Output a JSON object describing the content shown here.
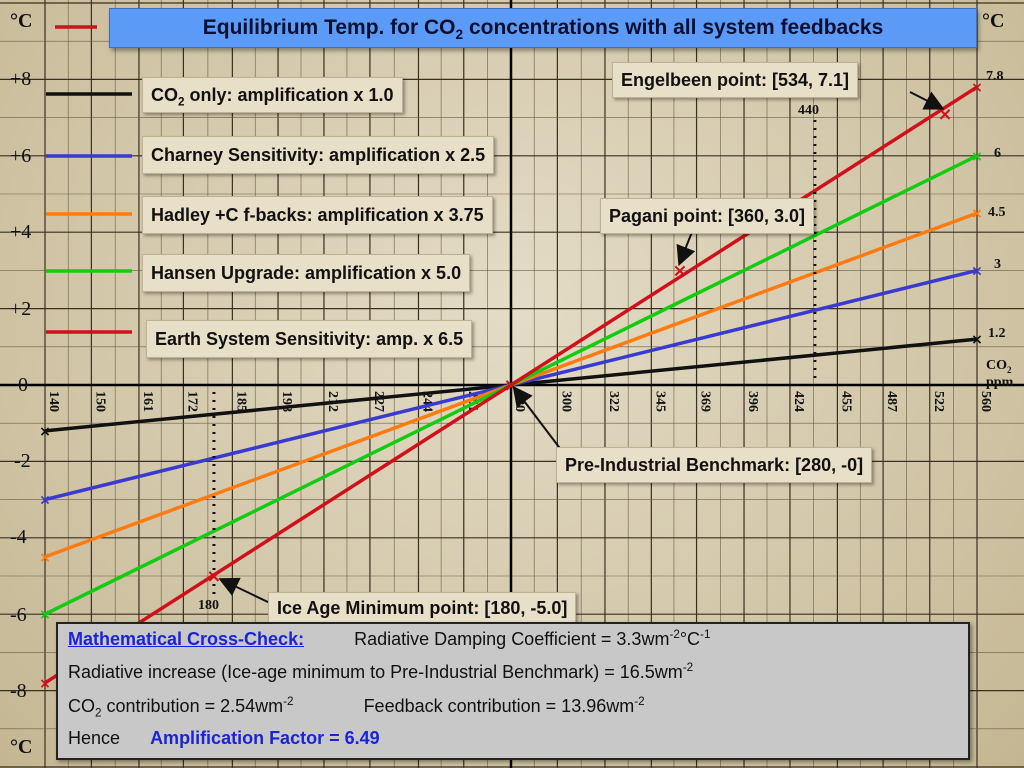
{
  "title": {
    "main": "Equilibrium Temp. for CO",
    "sub": "2",
    "rest": " concentrations with  all system feedbacks"
  },
  "unit_label": "°C",
  "x_unit_label": {
    "top": "CO",
    "sub": "2",
    "bottom": "ppm"
  },
  "legend": [
    {
      "text_a": "CO",
      "sub": "2",
      "text_b": " only: amplification x 1.0",
      "color": "#111111"
    },
    {
      "text_a": "Charney Sensitivity: amplification x 2.5",
      "sub": "",
      "text_b": "",
      "color": "#3a3ad0"
    },
    {
      "text_a": "Hadley +C f-backs: amplification x 3.75",
      "sub": "",
      "text_b": "",
      "color": "#ff7a10"
    },
    {
      "text_a": "Hansen Upgrade: amplification x 5.0",
      "sub": "",
      "text_b": "",
      "color": "#11cc11"
    },
    {
      "text_a": "Earth System Sensitivity: amp. x 6.5",
      "sub": "",
      "text_b": "",
      "color": "#d0101a"
    }
  ],
  "annotations": {
    "engelbeen": "Engelbeen point: [534, 7.1]",
    "pagani": "Pagani point: [360, 3.0]",
    "preindustrial": "Pre-Industrial Benchmark: [280, -0]",
    "iceage": "Ice Age Minimum point: [180, -5.0]",
    "marker_440": "440",
    "marker_180": "180"
  },
  "end_labels": [
    "7.8",
    "6",
    "4.5",
    "3",
    "1.2"
  ],
  "calc": {
    "heading": "Mathematical Cross-Check:",
    "line1_a": "Radiative Damping Coefficient = 3.3wm",
    "line1_sup1": "-2",
    "line1_b": "°C",
    "line1_sup2": "-1",
    "line2_a": "Radiative increase (Ice-age minimum to Pre-Industrial Benchmark) = 16.5wm",
    "line2_sup": "-2",
    "line3_a": "CO",
    "line3_sub": "2",
    "line3_b": " contribution = 2.54wm",
    "line3_sup": "-2",
    "line3_c": "Feedback contribution = 13.96wm",
    "line3_sup2": "-2",
    "line4_a": "Hence",
    "line4_b": "Amplification Factor = 6.49"
  },
  "chart_data": {
    "type": "line",
    "x_scale": "log",
    "x_ticks": [
      "140",
      "150",
      "161",
      "172",
      "185",
      "198",
      "212",
      "227",
      "244",
      "261",
      "280",
      "300",
      "322",
      "345",
      "369",
      "396",
      "424",
      "455",
      "487",
      "522",
      "560"
    ],
    "y_ticks": [
      "+8",
      "+6",
      "+4",
      "+2",
      "0",
      "-2",
      "-4",
      "-6",
      "-8"
    ],
    "y_tick_values": [
      8,
      6,
      4,
      2,
      0,
      -2,
      -4,
      -6,
      -8
    ],
    "ylim": [
      -9,
      9
    ],
    "xlim": [
      140,
      560
    ],
    "series": [
      {
        "name": "CO2 only: amplification x 1.0",
        "color": "#111111",
        "x": [
          140,
          280,
          560
        ],
        "y": [
          -1.2,
          0,
          1.2
        ]
      },
      {
        "name": "Charney Sensitivity: amplification x 2.5",
        "color": "#3a3ad0",
        "x": [
          140,
          280,
          560
        ],
        "y": [
          -3.0,
          0,
          3.0
        ]
      },
      {
        "name": "Hadley +C f-backs: amplification x 3.75",
        "color": "#ff7a10",
        "x": [
          140,
          280,
          560
        ],
        "y": [
          -4.5,
          0,
          4.5
        ]
      },
      {
        "name": "Hansen Upgrade: amplification x 5.0",
        "color": "#11cc11",
        "x": [
          140,
          280,
          560
        ],
        "y": [
          -6.0,
          0,
          6.0
        ]
      },
      {
        "name": "Earth System Sensitivity: amp. x 6.5",
        "color": "#d0101a",
        "x": [
          140,
          280,
          560
        ],
        "y": [
          -7.8,
          0,
          7.8
        ]
      }
    ],
    "points": [
      {
        "label": "Engelbeen point",
        "x": 534,
        "y": 7.1
      },
      {
        "label": "Pagani point",
        "x": 360,
        "y": 3.0
      },
      {
        "label": "Pre-Industrial Benchmark",
        "x": 280,
        "y": 0
      },
      {
        "label": "Ice Age Minimum point",
        "x": 180,
        "y": -5.0
      }
    ],
    "vertical_markers": [
      440,
      180
    ],
    "grid": true
  }
}
